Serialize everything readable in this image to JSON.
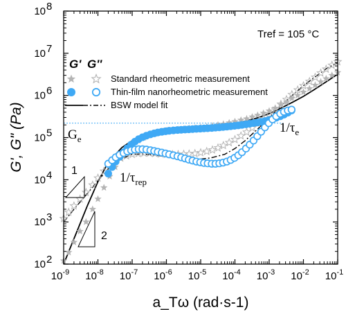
{
  "chart_data": {
    "type": "scatter",
    "x_scale": "log",
    "y_scale": "log",
    "xlim": [
      1e-09,
      0.1
    ],
    "ylim": [
      100,
      100000000.0
    ],
    "xlabel": "a_Tω (rad·s-1)",
    "ylabel": "G', G\" (Pa)",
    "x_tick_exponents": [
      "-9",
      "-8",
      "-7",
      "-6",
      "-5",
      "-4",
      "-3",
      "-2",
      "-1"
    ],
    "y_tick_exponents": [
      "2",
      "3",
      "4",
      "5",
      "6",
      "7",
      "8"
    ],
    "x_tick_base": "10",
    "y_tick_base": "10",
    "reference_temperature": "Tref = 105 °C",
    "legend": {
      "header_storage": "G'",
      "header_loss": "G''",
      "entries": [
        "Standard rheometric measurement",
        "Thin-film nanorheometric measurement",
        "BSW model fit"
      ]
    },
    "annotations": {
      "plateau_label": "G",
      "plateau_sub": "e",
      "plateau_value": 220000,
      "tau_e_label": "1/τ",
      "tau_e_sub": "e",
      "tau_rep_label": "1/τ",
      "tau_rep_sub": "rep",
      "slope_one": "1",
      "slope_two": "2"
    },
    "colors": {
      "standard": "#b4b4b4",
      "thin_film": "#3fa9f5",
      "fit": "#000000",
      "plateau_line": "#3fa9f5"
    },
    "series": [
      {
        "name": "Standard rheometric measurement",
        "quantity": "G'",
        "marker": "filled-star",
        "x": [
          1e-09,
          1.4e-09,
          2e-09,
          3e-09,
          4.5e-09,
          7e-09,
          1e-08,
          1.5e-08,
          2.2e-08,
          3.2e-08,
          4.6e-08,
          6.8e-08,
          1e-07,
          1.5e-07,
          2.2e-07,
          3.2e-07,
          4.6e-07,
          6.8e-07,
          1e-06,
          1.5e-06,
          2.2e-06,
          3.2e-06,
          4.6e-06,
          6.8e-06,
          1e-05,
          1.5e-05,
          2.2e-05,
          3.2e-05,
          4.6e-05,
          6.8e-05,
          0.0001,
          0.00015,
          0.00022,
          0.00032,
          0.00046,
          0.00068,
          0.001,
          0.0015,
          0.0022,
          0.0032,
          0.0046,
          0.0068,
          0.01,
          0.015,
          0.022,
          0.032,
          0.046,
          0.068,
          0.1
        ],
        "y": [
          120,
          190,
          330,
          600,
          1000,
          2000,
          3500,
          6500,
          12000,
          20000,
          32000,
          48000,
          65000,
          85000,
          100000,
          115000,
          125000,
          135000,
          145000,
          150000,
          155000,
          160000,
          165000,
          170000,
          175000,
          180000,
          190000,
          200000,
          210000,
          225000,
          240000,
          260000,
          280000,
          310000,
          340000,
          380000,
          430000,
          500000,
          600000,
          700000,
          850000,
          1000000,
          1200000,
          1450000,
          1750000,
          2100000,
          2500000,
          3000000,
          3500000
        ]
      },
      {
        "name": "Standard rheometric measurement",
        "quantity": "G''",
        "marker": "open-star",
        "x": [
          1e-09,
          1.4e-09,
          2e-09,
          3e-09,
          4.5e-09,
          7e-09,
          1e-08,
          1.5e-08,
          2.2e-08,
          3.2e-08,
          4.6e-08,
          6.8e-08,
          1e-07,
          1.5e-07,
          2.2e-07,
          3.2e-07,
          4.6e-07,
          6.8e-07,
          1e-06,
          1.5e-06,
          2.2e-06,
          3.2e-06,
          4.6e-06,
          6.8e-06,
          1e-05,
          1.5e-05,
          2.2e-05,
          3.2e-05,
          4.6e-05,
          6.8e-05,
          0.0001,
          0.00015,
          0.00022,
          0.00032,
          0.00046,
          0.00068,
          0.001,
          0.0015,
          0.0022,
          0.0032,
          0.0046,
          0.0068,
          0.01,
          0.015,
          0.022,
          0.032,
          0.046,
          0.068,
          0.1
        ],
        "y": [
          1200,
          1700,
          2400,
          3500,
          5000,
          7500,
          11000,
          16000,
          22000,
          28000,
          33000,
          37000,
          40000,
          42000,
          43000,
          43000,
          42000,
          41000,
          40000,
          40000,
          40000,
          40500,
          41000,
          42000,
          44000,
          47000,
          51000,
          57000,
          65000,
          76000,
          90000,
          110000,
          135000,
          170000,
          215000,
          280000,
          360000,
          470000,
          620000,
          800000,
          1050000,
          1350000,
          1700000,
          2150000,
          2700000,
          3400000,
          4200000,
          5200000,
          6300000
        ]
      },
      {
        "name": "Thin-film nanorheometric measurement",
        "quantity": "G'",
        "marker": "filled-circle",
        "x": [
          2e-08,
          2.6e-08,
          3.3e-08,
          4.3e-08,
          5.6e-08,
          7.2e-08,
          9.3e-08,
          1.2e-07,
          1.55e-07,
          2e-07,
          2.6e-07,
          3.4e-07,
          4.4e-07,
          5.6e-07,
          7.3e-07,
          9.4e-07,
          1.2e-06,
          1.6e-06,
          2.1e-06,
          2.7e-06,
          3.5e-06,
          4.5e-06,
          5.8e-06,
          7.5e-06,
          9.7e-06,
          1.25e-05,
          1.6e-05,
          2.1e-05,
          2.7e-05,
          3.5e-05,
          4.5e-05,
          5.8e-05,
          7.5e-05,
          9.7e-05,
          0.000125,
          0.00016,
          0.00021,
          0.00027,
          0.00035,
          0.00045,
          0.00058,
          0.00075,
          0.00097,
          0.00125,
          0.0016,
          0.0021,
          0.0027,
          0.0035,
          0.0045
        ],
        "y": [
          14000,
          20000,
          27000,
          35000,
          45000,
          56000,
          68000,
          80000,
          92000,
          102000,
          111000,
          119000,
          126000,
          132000,
          137000,
          141000,
          145000,
          148000,
          151000,
          153000,
          155000,
          157000,
          159000,
          161000,
          163000,
          165000,
          167000,
          169000,
          172000,
          175000,
          178000,
          182000,
          186000,
          190000,
          195000,
          200000,
          206000,
          213000,
          220000,
          228000,
          237000,
          247000,
          260000,
          275000,
          295000,
          320000,
          350000,
          390000,
          440000
        ]
      },
      {
        "name": "Thin-film nanorheometric measurement",
        "quantity": "G''",
        "marker": "open-circle",
        "x": [
          2e-08,
          2.6e-08,
          3.3e-08,
          4.3e-08,
          5.6e-08,
          7.2e-08,
          9.3e-08,
          1.2e-07,
          1.55e-07,
          2e-07,
          2.6e-07,
          3.4e-07,
          4.4e-07,
          5.6e-07,
          7.3e-07,
          9.4e-07,
          1.2e-06,
          1.6e-06,
          2.1e-06,
          2.7e-06,
          3.5e-06,
          4.5e-06,
          5.8e-06,
          7.5e-06,
          9.7e-06,
          1.25e-05,
          1.6e-05,
          2.1e-05,
          2.7e-05,
          3.5e-05,
          4.5e-05,
          5.8e-05,
          7.5e-05,
          9.7e-05,
          0.000125,
          0.00016,
          0.00021,
          0.00027,
          0.00035,
          0.00045,
          0.00058,
          0.00075,
          0.00097,
          0.00125,
          0.0016,
          0.0021,
          0.0027,
          0.0035,
          0.0045
        ],
        "y": [
          24000,
          29000,
          34000,
          39000,
          43000,
          47000,
          50000,
          52000,
          53000,
          53000,
          52000,
          50000,
          48000,
          46000,
          44000,
          42000,
          40000,
          38000,
          36000,
          34000,
          32000,
          30000,
          28500,
          27000,
          26000,
          25000,
          24500,
          24000,
          24000,
          24500,
          25500,
          27000,
          29500,
          33000,
          38000,
          45000,
          55000,
          68000,
          85000,
          108000,
          138000,
          175000,
          220000,
          270000,
          320000,
          370000,
          410000,
          440000,
          460000
        ]
      },
      {
        "name": "BSW model fit",
        "quantity": "G'",
        "line": "solid",
        "x": [
          1e-09,
          2e-09,
          5e-09,
          1e-08,
          2e-08,
          5e-08,
          1e-07,
          2e-07,
          5e-07,
          1e-06,
          2e-06,
          5e-06,
          1e-05,
          2e-05,
          5e-05,
          0.0001,
          0.0002,
          0.0005,
          0.001,
          0.002,
          0.005,
          0.01,
          0.02,
          0.05,
          0.1
        ],
        "y": [
          100,
          400,
          2500,
          9000,
          26000,
          58000,
          85000,
          108000,
          130000,
          145000,
          156000,
          166000,
          173000,
          182000,
          198000,
          215000,
          245000,
          300000,
          370000,
          480000,
          700000,
          950000,
          1350000,
          2200000,
          3200000
        ]
      },
      {
        "name": "BSW model fit",
        "quantity": "G''",
        "line": "dash-dot",
        "x": [
          1e-09,
          2e-09,
          5e-09,
          1e-08,
          2e-08,
          5e-08,
          1e-07,
          2e-07,
          5e-07,
          1e-06,
          2e-06,
          5e-06,
          1e-05,
          2e-05,
          5e-05,
          0.0001,
          0.0002,
          0.0005,
          0.001,
          0.002,
          0.005,
          0.01,
          0.02,
          0.05,
          0.1
        ],
        "y": [
          1000,
          2000,
          4800,
          9500,
          18000,
          32000,
          40000,
          41000,
          38000,
          35000,
          33000,
          31000,
          31000,
          33000,
          40000,
          55000,
          85000,
          170000,
          300000,
          520000,
          1050000,
          1700000,
          2600000,
          4500000,
          6000000
        ]
      }
    ]
  }
}
